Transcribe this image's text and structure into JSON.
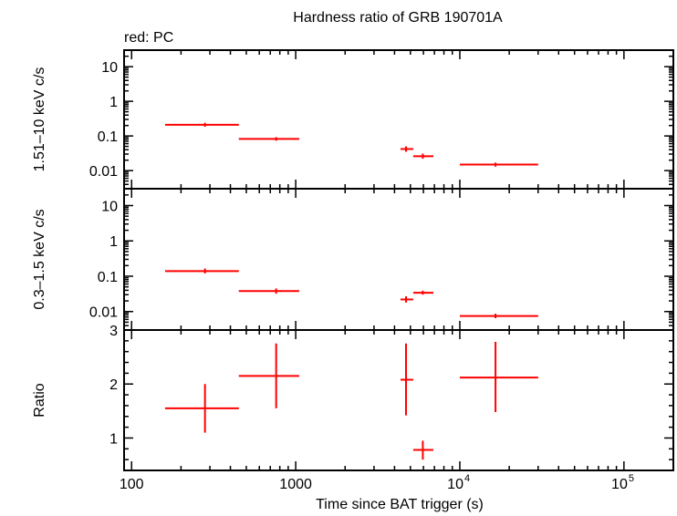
{
  "chart_data": {
    "type": "scatter",
    "title": "Hardness ratio of GRB 190701A",
    "legend_text": "red: PC",
    "xlabel": "Time since BAT trigger (s)",
    "x_scale": "log",
    "xlim": [
      90,
      200000
    ],
    "x_ticks": [
      {
        "value": 100,
        "label": "100"
      },
      {
        "value": 1000,
        "label": "1000"
      },
      {
        "value": 10000,
        "label": "10",
        "exp": "4"
      },
      {
        "value": 100000,
        "label": "10",
        "exp": "5"
      }
    ],
    "colors": {
      "series": "#ff0000",
      "axes": "#000000"
    },
    "panels": [
      {
        "name": "hard",
        "ylabel": "1.51–10 keV c/s",
        "y_scale": "log",
        "ylim": [
          0.003,
          30
        ],
        "y_ticks": [
          {
            "value": 10,
            "label": "10"
          },
          {
            "value": 1,
            "label": "1"
          },
          {
            "value": 0.1,
            "label": "0.1"
          },
          {
            "value": 0.01,
            "label": "0.01"
          }
        ],
        "points": [
          {
            "x": 280,
            "xlo": 160,
            "xhi": 450,
            "y": 0.21,
            "ylo": 0.185,
            "yhi": 0.24
          },
          {
            "x": 760,
            "xlo": 450,
            "xhi": 1050,
            "y": 0.082,
            "ylo": 0.073,
            "yhi": 0.092
          },
          {
            "x": 4700,
            "xlo": 4350,
            "xhi": 5200,
            "y": 0.042,
            "ylo": 0.035,
            "yhi": 0.05
          },
          {
            "x": 5950,
            "xlo": 5200,
            "xhi": 6900,
            "y": 0.026,
            "ylo": 0.022,
            "yhi": 0.031
          },
          {
            "x": 16500,
            "xlo": 10000,
            "xhi": 30000,
            "y": 0.015,
            "ylo": 0.013,
            "yhi": 0.017
          }
        ]
      },
      {
        "name": "soft",
        "ylabel": "0.3–1.5 keV c/s",
        "y_scale": "log",
        "ylim": [
          0.003,
          30
        ],
        "y_ticks": [
          {
            "value": 10,
            "label": "10"
          },
          {
            "value": 1,
            "label": "1"
          },
          {
            "value": 0.1,
            "label": "0.1"
          },
          {
            "value": 0.01,
            "label": "0.01"
          }
        ],
        "points": [
          {
            "x": 280,
            "xlo": 160,
            "xhi": 450,
            "y": 0.14,
            "ylo": 0.12,
            "yhi": 0.165
          },
          {
            "x": 760,
            "xlo": 450,
            "xhi": 1050,
            "y": 0.038,
            "ylo": 0.032,
            "yhi": 0.045
          },
          {
            "x": 4700,
            "xlo": 4350,
            "xhi": 5200,
            "y": 0.022,
            "ylo": 0.018,
            "yhi": 0.027
          },
          {
            "x": 5950,
            "xlo": 5200,
            "xhi": 6900,
            "y": 0.034,
            "ylo": 0.03,
            "yhi": 0.039
          },
          {
            "x": 16500,
            "xlo": 10000,
            "xhi": 30000,
            "y": 0.0075,
            "ylo": 0.0065,
            "yhi": 0.0087
          }
        ]
      },
      {
        "name": "ratio",
        "ylabel": "Ratio",
        "y_scale": "linear",
        "ylim": [
          0.4,
          3.0
        ],
        "y_ticks": [
          {
            "value": 3,
            "label": "3"
          },
          {
            "value": 2,
            "label": "2"
          },
          {
            "value": 1,
            "label": "1"
          }
        ],
        "points": [
          {
            "x": 280,
            "xlo": 160,
            "xhi": 450,
            "y": 1.55,
            "ylo": 1.1,
            "yhi": 2.0
          },
          {
            "x": 760,
            "xlo": 450,
            "xhi": 1050,
            "y": 2.15,
            "ylo": 1.55,
            "yhi": 2.75
          },
          {
            "x": 4700,
            "xlo": 4350,
            "xhi": 5200,
            "y": 2.08,
            "ylo": 1.42,
            "yhi": 2.75
          },
          {
            "x": 5950,
            "xlo": 5200,
            "xhi": 6900,
            "y": 0.78,
            "ylo": 0.6,
            "yhi": 0.95
          },
          {
            "x": 16500,
            "xlo": 10000,
            "xhi": 30000,
            "y": 2.12,
            "ylo": 1.48,
            "yhi": 2.78
          }
        ]
      }
    ]
  }
}
